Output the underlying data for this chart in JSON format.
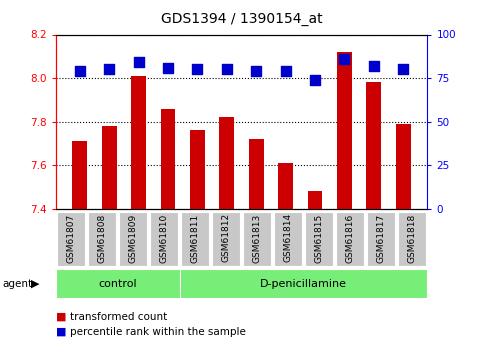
{
  "title": "GDS1394 / 1390154_at",
  "samples": [
    "GSM61807",
    "GSM61808",
    "GSM61809",
    "GSM61810",
    "GSM61811",
    "GSM61812",
    "GSM61813",
    "GSM61814",
    "GSM61815",
    "GSM61816",
    "GSM61817",
    "GSM61818"
  ],
  "transformed_count": [
    7.71,
    7.78,
    8.01,
    7.86,
    7.76,
    7.82,
    7.72,
    7.61,
    7.48,
    8.12,
    7.98,
    7.79
  ],
  "percentile_rank": [
    79,
    80,
    84,
    81,
    80,
    80,
    79,
    79,
    74,
    86,
    82,
    80
  ],
  "ylim_left": [
    7.4,
    8.2
  ],
  "ylim_right": [
    0,
    100
  ],
  "yticks_left": [
    7.4,
    7.6,
    7.8,
    8.0,
    8.2
  ],
  "yticks_right": [
    0,
    25,
    50,
    75,
    100
  ],
  "bar_color": "#CC0000",
  "dot_color": "#0000CC",
  "n_control": 4,
  "n_treatment": 8,
  "control_label": "control",
  "treatment_label": "D-penicillamine",
  "agent_label": "agent",
  "legend_bar": "transformed count",
  "legend_dot": "percentile rank within the sample",
  "group_box_color": "#77EE77",
  "tick_label_bg": "#C8C8C8",
  "bar_base": 7.4,
  "dot_size": 50,
  "title_fontsize": 10,
  "axis_fontsize": 7.5,
  "label_fontsize": 6.5,
  "group_fontsize": 8,
  "legend_fontsize": 7.5
}
